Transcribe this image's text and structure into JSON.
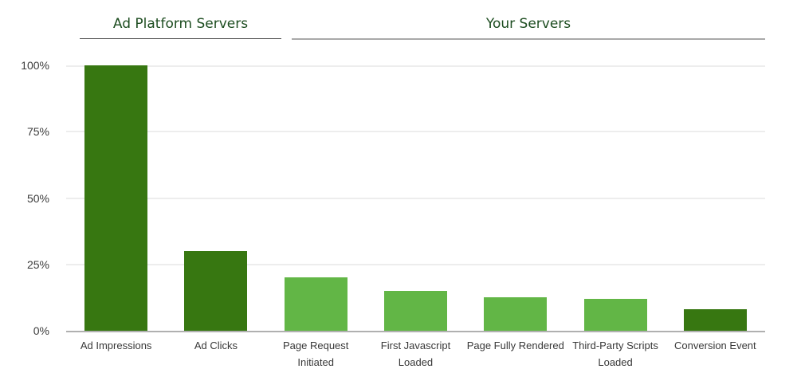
{
  "header": {
    "groups": [
      {
        "label": "Ad Platform Servers"
      },
      {
        "label": "Your Servers"
      }
    ]
  },
  "chart_data": {
    "type": "bar",
    "title": "",
    "categories": [
      "Ad Impressions",
      "Ad Clicks",
      "Page Request Initiated",
      "First Javascript Loaded",
      "Page Fully Rendered",
      "Third-Party Scripts Loaded",
      "Conversion Event"
    ],
    "values": [
      100,
      30,
      20,
      15,
      12.5,
      12,
      8
    ],
    "unit": "%",
    "bar_colors": [
      "#377711",
      "#377711",
      "#62b646",
      "#62b646",
      "#62b646",
      "#62b646",
      "#377711"
    ],
    "category_groups": [
      {
        "name": "Ad Platform Servers",
        "categories": [
          "Ad Impressions",
          "Ad Clicks"
        ]
      },
      {
        "name": "Your Servers",
        "categories": [
          "Page Request Initiated",
          "First Javascript Loaded",
          "Page Fully Rendered",
          "Third-Party Scripts Loaded",
          "Conversion Event"
        ]
      }
    ],
    "xlabel": "",
    "ylabel": "",
    "ylim": [
      0,
      100
    ],
    "yticks": [
      100,
      75,
      50,
      25,
      0
    ],
    "ytick_labels": [
      "100%",
      "75%",
      "50%",
      "25%",
      "0%"
    ],
    "grid": true,
    "legend": "none"
  },
  "style": {
    "dark_green": "#377711",
    "light_green": "#62b646",
    "header_text": "#1d4d20",
    "axis_line": "#b0b0b0",
    "gridline": "#ededed",
    "tick_text": "#3c3c3c"
  }
}
